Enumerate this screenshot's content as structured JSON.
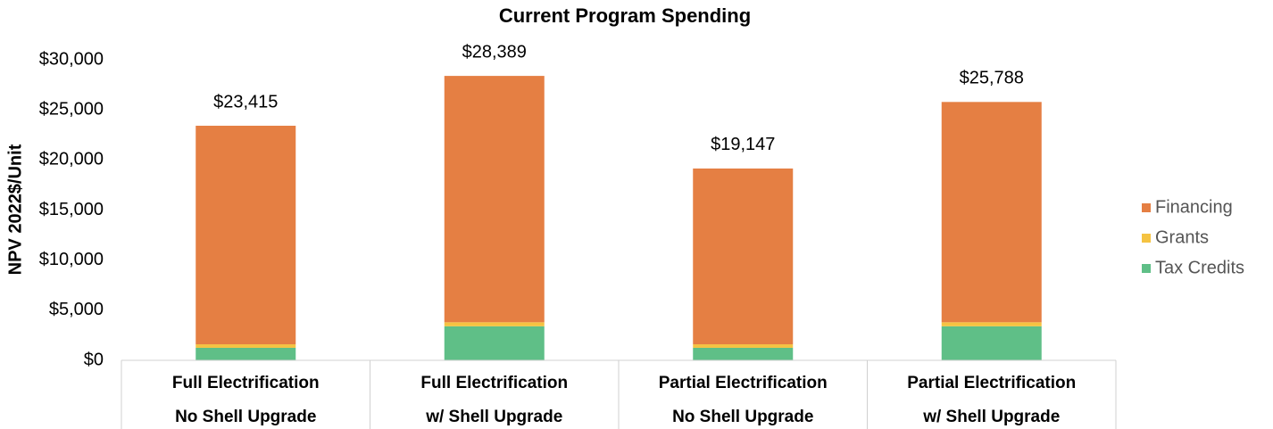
{
  "chart_data": {
    "type": "stacked_bar",
    "title": "Current Program Spending",
    "y_label": "NPV 2022$/Unit",
    "categories": [
      [
        "Full Electrification",
        "No Shell Upgrade"
      ],
      [
        "Full Electrification",
        "w/ Shell Upgrade"
      ],
      [
        "Partial Electrification",
        "No Shell Upgrade"
      ],
      [
        "Partial Electrification",
        "w/ Shell Upgrade"
      ]
    ],
    "series": [
      {
        "name": "Tax Credits",
        "color": "#5fbf87",
        "values": [
          1250,
          3400,
          1250,
          3400
        ]
      },
      {
        "name": "Grants",
        "color": "#f5c342",
        "values": [
          350,
          400,
          350,
          400
        ]
      },
      {
        "name": "Financing",
        "color": "#e57f43",
        "values": [
          21815,
          24589,
          17547,
          21988
        ]
      }
    ],
    "totals": [
      23415,
      28389,
      19147,
      25788
    ],
    "total_labels": [
      "$23,415",
      "$28,389",
      "$19,147",
      "$25,788"
    ],
    "ylim": [
      0,
      30000
    ],
    "yticks": [
      {
        "value": 0,
        "label": "$0"
      },
      {
        "value": 5000,
        "label": "$5,000"
      },
      {
        "value": 10000,
        "label": "$10,000"
      },
      {
        "value": 15000,
        "label": "$15,000"
      },
      {
        "value": 20000,
        "label": "$20,000"
      },
      {
        "value": 25000,
        "label": "$25,000"
      },
      {
        "value": 30000,
        "label": "$30,000"
      }
    ],
    "grid": false,
    "legend": "right"
  }
}
